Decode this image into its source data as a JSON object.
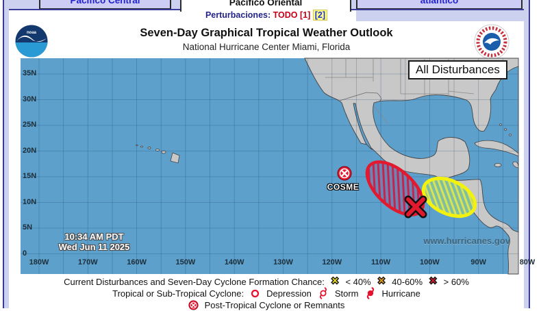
{
  "tabs": [
    {
      "label": "Pacífico Central"
    },
    {
      "label": "Pacífico Oriental"
    },
    {
      "label": "atlántico"
    }
  ],
  "filters": {
    "label": "Perturbaciones:",
    "value": "TODO [1]",
    "link2": "[2]"
  },
  "header": {
    "title": "Seven-Day Graphical Tropical Weather Outlook",
    "subtitle": "National Hurricane Center  Miami, Florida"
  },
  "map": {
    "overlay_button": "All Disturbances",
    "storm_name": "COSME",
    "timestamp_time": "10:34 AM PDT",
    "timestamp_date": "Wed Jun 11 2025",
    "watermark": "www.hurricanes.gov",
    "lat_labels": [
      "35N",
      "30N",
      "25N",
      "20N",
      "15N",
      "10N",
      "5N",
      "0"
    ],
    "lon_labels": [
      "180W",
      "170W",
      "160W",
      "150W",
      "140W",
      "130W",
      "120W",
      "110W",
      "100W",
      "90W",
      "80W"
    ],
    "colors": {
      "ocean": "#5da0cc",
      "land": "#c8c8c8",
      "high_risk": "#e3192d",
      "low_risk": "#f2f20e"
    }
  },
  "legend": {
    "line1_label": "Current Disturbances and Seven-Day Cyclone Formation Chance:",
    "chances": [
      {
        "color": "#f2e226",
        "label": "< 40%"
      },
      {
        "color": "#eb9b20",
        "label": "40-60%"
      },
      {
        "color": "#cf1b2b",
        "label": "> 60%"
      }
    ],
    "line2_label": "Tropical or Sub-Tropical Cyclone:",
    "types": [
      {
        "label": "Depression"
      },
      {
        "label": "Storm"
      },
      {
        "label": "Hurricane"
      }
    ],
    "line3_label": "Post-Tropical Cyclone or Remnants"
  }
}
